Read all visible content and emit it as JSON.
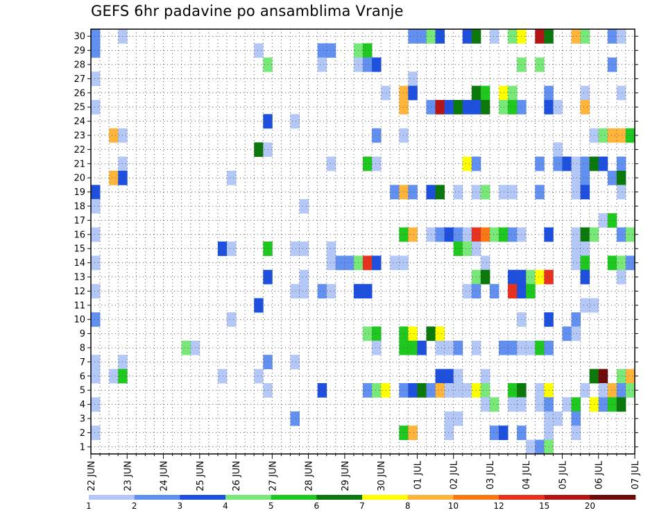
{
  "chart_data": {
    "type": "heatmap",
    "title": "GEFS 6hr padavine po ansamblima Vranje",
    "x_labels": [
      "22 JUN",
      "23 JUN",
      "24 JUN",
      "25 JUN",
      "26 JUN",
      "27 JUN",
      "28 JUN",
      "29 JUN",
      "30 JUN",
      "01 JUL",
      "02 JUL",
      "03 JUL",
      "04 JUL",
      "05 JUL",
      "06 JUL",
      "07 JUL"
    ],
    "y_labels": [
      "1",
      "2",
      "3",
      "4",
      "5",
      "6",
      "7",
      "8",
      "9",
      "10",
      "11",
      "12",
      "13",
      "14",
      "15",
      "16",
      "17",
      "18",
      "19",
      "20",
      "21",
      "22",
      "23",
      "24",
      "25",
      "26",
      "27",
      "28",
      "29",
      "30"
    ],
    "steps_per_day": 4,
    "x_range": [
      0,
      60
    ],
    "y_range": [
      1,
      30
    ],
    "grid": true,
    "legend_position": "bottom",
    "levels": [
      "1",
      "2",
      "3",
      "4",
      "5",
      "6",
      "7",
      "8",
      "10",
      "12",
      "15",
      "20"
    ],
    "colors": [
      "#b4c8f8",
      "#6290f0",
      "#1e50e0",
      "#78e878",
      "#1ec81e",
      "#0a780a",
      "#ffff00",
      "#ffb43c",
      "#fa7814",
      "#e6321e",
      "#b41414",
      "#6e0a0a"
    ],
    "series": [
      {
        "member": 30,
        "cells": [
          [
            0,
            1
          ],
          [
            3,
            0
          ],
          [
            35,
            1
          ],
          [
            36,
            1
          ],
          [
            37,
            3
          ],
          [
            38,
            2
          ],
          [
            41,
            2
          ],
          [
            42,
            5
          ],
          [
            44,
            0
          ],
          [
            46,
            3
          ],
          [
            47,
            6
          ],
          [
            49,
            10
          ],
          [
            50,
            5
          ],
          [
            53,
            7
          ],
          [
            54,
            3
          ],
          [
            57,
            1
          ],
          [
            58,
            0
          ]
        ]
      },
      {
        "member": 29,
        "cells": [
          [
            0,
            1
          ],
          [
            18,
            0
          ],
          [
            25,
            1
          ],
          [
            26,
            1
          ],
          [
            29,
            3
          ],
          [
            30,
            4
          ]
        ]
      },
      {
        "member": 28,
        "cells": [
          [
            19,
            3
          ],
          [
            25,
            0
          ],
          [
            29,
            0
          ],
          [
            30,
            1
          ],
          [
            31,
            2
          ],
          [
            47,
            3
          ],
          [
            49,
            3
          ],
          [
            57,
            1
          ]
        ]
      },
      {
        "member": 27,
        "cells": [
          [
            0,
            0
          ],
          [
            35,
            0
          ]
        ]
      },
      {
        "member": 26,
        "cells": [
          [
            32,
            0
          ],
          [
            34,
            7
          ],
          [
            35,
            2
          ],
          [
            42,
            5
          ],
          [
            43,
            4
          ],
          [
            45,
            6
          ],
          [
            46,
            3
          ],
          [
            50,
            1
          ],
          [
            54,
            0
          ],
          [
            58,
            0
          ]
        ]
      },
      {
        "member": 25,
        "cells": [
          [
            0,
            0
          ],
          [
            34,
            7
          ],
          [
            37,
            1
          ],
          [
            38,
            10
          ],
          [
            39,
            2
          ],
          [
            40,
            5
          ],
          [
            41,
            2
          ],
          [
            42,
            2
          ],
          [
            43,
            5
          ],
          [
            45,
            3
          ],
          [
            46,
            4
          ],
          [
            47,
            1
          ],
          [
            50,
            2
          ],
          [
            51,
            0
          ],
          [
            54,
            7
          ]
        ]
      },
      {
        "member": 24,
        "cells": [
          [
            19,
            2
          ],
          [
            22,
            0
          ]
        ]
      },
      {
        "member": 23,
        "cells": [
          [
            2,
            7
          ],
          [
            3,
            0
          ],
          [
            31,
            1
          ],
          [
            34,
            0
          ],
          [
            55,
            0
          ],
          [
            56,
            3
          ],
          [
            57,
            7
          ],
          [
            58,
            7
          ],
          [
            59,
            4
          ]
        ]
      },
      {
        "member": 22,
        "cells": [
          [
            18,
            5
          ],
          [
            19,
            0
          ],
          [
            51,
            0
          ]
        ]
      },
      {
        "member": 21,
        "cells": [
          [
            3,
            0
          ],
          [
            26,
            0
          ],
          [
            30,
            4
          ],
          [
            31,
            0
          ],
          [
            41,
            6
          ],
          [
            42,
            1
          ],
          [
            49,
            1
          ],
          [
            51,
            1
          ],
          [
            52,
            2
          ],
          [
            53,
            0
          ],
          [
            54,
            1
          ],
          [
            55,
            5
          ],
          [
            56,
            2
          ],
          [
            58,
            1
          ]
        ]
      },
      {
        "member": 20,
        "cells": [
          [
            2,
            7
          ],
          [
            3,
            2
          ],
          [
            15,
            0
          ],
          [
            53,
            0
          ],
          [
            54,
            1
          ],
          [
            57,
            1
          ],
          [
            58,
            5
          ]
        ]
      },
      {
        "member": 19,
        "cells": [
          [
            0,
            2
          ],
          [
            33,
            1
          ],
          [
            34,
            7
          ],
          [
            35,
            1
          ],
          [
            37,
            2
          ],
          [
            38,
            5
          ],
          [
            40,
            0
          ],
          [
            42,
            0
          ],
          [
            43,
            3
          ],
          [
            45,
            0
          ],
          [
            46,
            0
          ],
          [
            49,
            1
          ],
          [
            53,
            0
          ],
          [
            54,
            2
          ],
          [
            58,
            0
          ]
        ]
      },
      {
        "member": 18,
        "cells": [
          [
            0,
            0
          ],
          [
            23,
            0
          ]
        ]
      },
      {
        "member": 17,
        "cells": [
          [
            56,
            0
          ],
          [
            57,
            4
          ]
        ]
      },
      {
        "member": 16,
        "cells": [
          [
            0,
            0
          ],
          [
            34,
            4
          ],
          [
            35,
            7
          ],
          [
            37,
            0
          ],
          [
            38,
            1
          ],
          [
            39,
            2
          ],
          [
            40,
            1
          ],
          [
            41,
            0
          ],
          [
            42,
            9
          ],
          [
            43,
            8
          ],
          [
            44,
            3
          ],
          [
            45,
            4
          ],
          [
            46,
            1
          ],
          [
            47,
            0
          ],
          [
            50,
            2
          ],
          [
            53,
            0
          ],
          [
            54,
            5
          ],
          [
            55,
            3
          ],
          [
            58,
            1
          ],
          [
            59,
            3
          ]
        ]
      },
      {
        "member": 15,
        "cells": [
          [
            14,
            2
          ],
          [
            15,
            0
          ],
          [
            19,
            4
          ],
          [
            22,
            0
          ],
          [
            23,
            0
          ],
          [
            26,
            0
          ],
          [
            40,
            4
          ],
          [
            41,
            3
          ],
          [
            42,
            0
          ],
          [
            53,
            0
          ],
          [
            54,
            0
          ]
        ]
      },
      {
        "member": 14,
        "cells": [
          [
            0,
            0
          ],
          [
            26,
            0
          ],
          [
            27,
            1
          ],
          [
            28,
            1
          ],
          [
            29,
            3
          ],
          [
            30,
            9
          ],
          [
            31,
            2
          ],
          [
            33,
            0
          ],
          [
            34,
            0
          ],
          [
            43,
            0
          ],
          [
            53,
            0
          ],
          [
            54,
            4
          ],
          [
            57,
            4
          ],
          [
            58,
            3
          ],
          [
            59,
            1
          ]
        ]
      },
      {
        "member": 13,
        "cells": [
          [
            19,
            2
          ],
          [
            23,
            0
          ],
          [
            42,
            3
          ],
          [
            43,
            5
          ],
          [
            46,
            2
          ],
          [
            47,
            2
          ],
          [
            48,
            3
          ],
          [
            49,
            6
          ],
          [
            50,
            9
          ],
          [
            54,
            2
          ],
          [
            58,
            0
          ]
        ]
      },
      {
        "member": 12,
        "cells": [
          [
            0,
            0
          ],
          [
            22,
            0
          ],
          [
            23,
            0
          ],
          [
            25,
            1
          ],
          [
            26,
            0
          ],
          [
            29,
            2
          ],
          [
            30,
            2
          ],
          [
            41,
            0
          ],
          [
            42,
            1
          ],
          [
            44,
            1
          ],
          [
            46,
            9
          ],
          [
            47,
            2
          ],
          [
            48,
            4
          ]
        ]
      },
      {
        "member": 11,
        "cells": [
          [
            18,
            2
          ],
          [
            54,
            0
          ],
          [
            55,
            0
          ]
        ]
      },
      {
        "member": 10,
        "cells": [
          [
            0,
            1
          ],
          [
            15,
            0
          ],
          [
            47,
            0
          ],
          [
            50,
            2
          ],
          [
            53,
            1
          ]
        ]
      },
      {
        "member": 9,
        "cells": [
          [
            30,
            3
          ],
          [
            31,
            4
          ],
          [
            34,
            4
          ],
          [
            35,
            6
          ],
          [
            37,
            5
          ],
          [
            38,
            6
          ],
          [
            52,
            1
          ],
          [
            53,
            0
          ]
        ]
      },
      {
        "member": 8,
        "cells": [
          [
            10,
            3
          ],
          [
            11,
            0
          ],
          [
            31,
            0
          ],
          [
            34,
            4
          ],
          [
            35,
            4
          ],
          [
            36,
            2
          ],
          [
            38,
            0
          ],
          [
            39,
            0
          ],
          [
            40,
            1
          ],
          [
            42,
            0
          ],
          [
            45,
            1
          ],
          [
            46,
            1
          ],
          [
            47,
            0
          ],
          [
            48,
            0
          ],
          [
            49,
            4
          ],
          [
            50,
            1
          ]
        ]
      },
      {
        "member": 7,
        "cells": [
          [
            0,
            0
          ],
          [
            3,
            0
          ],
          [
            19,
            1
          ],
          [
            22,
            0
          ]
        ]
      },
      {
        "member": 6,
        "cells": [
          [
            0,
            0
          ],
          [
            2,
            0
          ],
          [
            3,
            4
          ],
          [
            14,
            0
          ],
          [
            18,
            0
          ],
          [
            38,
            2
          ],
          [
            39,
            2
          ],
          [
            40,
            0
          ],
          [
            43,
            0
          ],
          [
            55,
            5
          ],
          [
            56,
            11
          ],
          [
            58,
            3
          ],
          [
            59,
            7
          ]
        ]
      },
      {
        "member": 5,
        "cells": [
          [
            19,
            0
          ],
          [
            25,
            2
          ],
          [
            30,
            1
          ],
          [
            31,
            3
          ],
          [
            32,
            6
          ],
          [
            34,
            1
          ],
          [
            35,
            2
          ],
          [
            36,
            5
          ],
          [
            37,
            1
          ],
          [
            38,
            7
          ],
          [
            39,
            0
          ],
          [
            40,
            0
          ],
          [
            41,
            0
          ],
          [
            42,
            6
          ],
          [
            43,
            3
          ],
          [
            46,
            4
          ],
          [
            47,
            5
          ],
          [
            49,
            0
          ],
          [
            50,
            6
          ],
          [
            54,
            0
          ],
          [
            56,
            0
          ],
          [
            57,
            7
          ],
          [
            58,
            1
          ],
          [
            59,
            3
          ]
        ]
      },
      {
        "member": 4,
        "cells": [
          [
            0,
            0
          ],
          [
            43,
            0
          ],
          [
            44,
            3
          ],
          [
            46,
            0
          ],
          [
            47,
            0
          ],
          [
            49,
            0
          ],
          [
            50,
            1
          ],
          [
            52,
            0
          ],
          [
            53,
            4
          ],
          [
            55,
            6
          ],
          [
            56,
            1
          ],
          [
            57,
            4
          ],
          [
            58,
            5
          ]
        ]
      },
      {
        "member": 3,
        "cells": [
          [
            22,
            1
          ],
          [
            39,
            0
          ],
          [
            40,
            0
          ],
          [
            50,
            0
          ],
          [
            51,
            0
          ],
          [
            53,
            1
          ]
        ]
      },
      {
        "member": 2,
        "cells": [
          [
            0,
            0
          ],
          [
            34,
            4
          ],
          [
            35,
            7
          ],
          [
            39,
            0
          ],
          [
            44,
            1
          ],
          [
            45,
            2
          ],
          [
            47,
            1
          ],
          [
            50,
            0
          ],
          [
            53,
            0
          ]
        ]
      },
      {
        "member": 1,
        "cells": [
          [
            48,
            0
          ],
          [
            49,
            1
          ],
          [
            50,
            3
          ]
        ]
      }
    ]
  }
}
